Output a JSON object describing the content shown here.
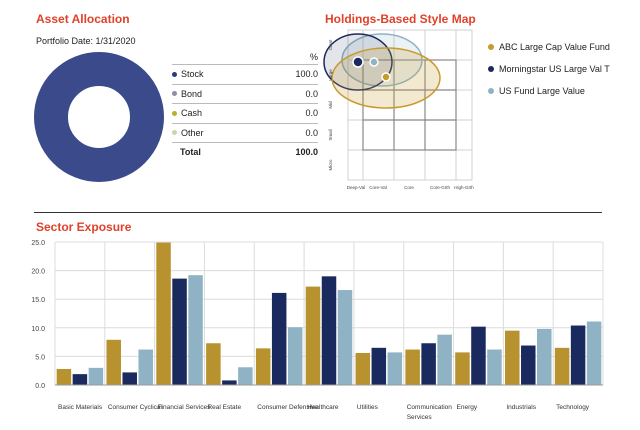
{
  "asset_allocation": {
    "title": "Asset Allocation",
    "portfolio_date": "Portfolio Date: 1/31/2020",
    "percent_header": "%",
    "rows": [
      {
        "label": "Stock",
        "value": "100.0",
        "color": "#2c3a7a"
      },
      {
        "label": "Bond",
        "value": "0.0",
        "color": "#8a8fa8"
      },
      {
        "label": "Cash",
        "value": "0.0",
        "color": "#b8b02a"
      },
      {
        "label": "Other",
        "value": "0.0",
        "color": "#c9d6a8"
      }
    ],
    "total_label": "Total",
    "total_value": "100.0",
    "donut_color": "#3a4a8a"
  },
  "style_map": {
    "title": "Holdings-Based Style Map",
    "y_labels": [
      "Giant",
      "Large",
      "Mid",
      "Small",
      "Micro"
    ],
    "x_labels": [
      "Deep-Val",
      "Core-Val",
      "Core",
      "Core-Grth",
      "High-Grth"
    ],
    "legend": [
      {
        "label": "ABC Large Cap Value Fund",
        "color": "#c79a2e"
      },
      {
        "label": "Morningstar US Large Val T",
        "color": "#1b2a5e"
      },
      {
        "label": "US Fund Large Value",
        "color": "#8fb3c4"
      }
    ]
  },
  "chart_data": {
    "type": "bar",
    "title": "Sector Exposure",
    "categories": [
      "Basic Materials",
      "Consumer Cyclical",
      "Financial Services",
      "Real Estate",
      "Consumer Defensive",
      "Healthcare",
      "Utilities",
      "Communication Services",
      "Energy",
      "Industrials",
      "Technology"
    ],
    "category_lines": [
      [
        "Basic Materials"
      ],
      [
        "Consumer Cyclical"
      ],
      [
        "Financial Services"
      ],
      [
        "Real Estate"
      ],
      [
        "Consumer Defensive"
      ],
      [
        "Healthcare"
      ],
      [
        "Utilities"
      ],
      [
        "Communication",
        "Services"
      ],
      [
        "Energy"
      ],
      [
        "Industrials"
      ],
      [
        "Technology"
      ]
    ],
    "series": [
      {
        "color": "#b8922e",
        "values": [
          2.8,
          7.9,
          24.9,
          7.3,
          6.4,
          17.2,
          5.6,
          6.2,
          5.7,
          9.5,
          6.5
        ]
      },
      {
        "color": "#1b2a5e",
        "values": [
          1.9,
          2.2,
          18.6,
          0.8,
          16.1,
          19.0,
          6.5,
          7.3,
          10.2,
          6.9,
          10.4
        ]
      },
      {
        "color": "#8fb3c4",
        "values": [
          3.0,
          6.2,
          19.2,
          3.1,
          10.1,
          16.6,
          5.7,
          8.8,
          6.2,
          9.8,
          11.1
        ]
      }
    ],
    "ylim": [
      0,
      25
    ],
    "yticks": [
      "0.0",
      "5.0",
      "10.0",
      "15.0",
      "20.0",
      "25.0"
    ],
    "grid": true
  }
}
